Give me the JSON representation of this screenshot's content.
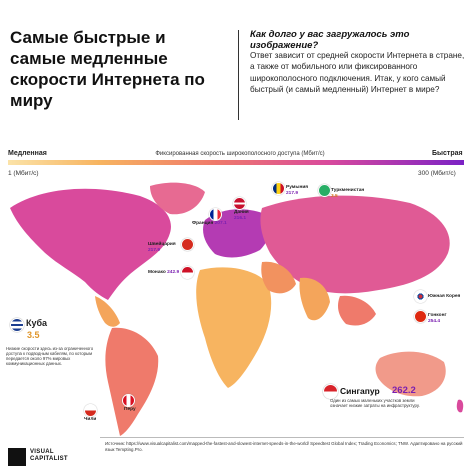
{
  "header": {
    "title": "Самые быстрые и самые медленные скорости Интернета по миру",
    "question": "Как долго у вас загружалось это изображение?",
    "answer": "Ответ зависит от средней скорости Интернета в стране, а также от мобильного или фиксированного широкополосного подключения. Итак, у кого самый быстрый (и самый медленный) Интернет в мире?"
  },
  "legend": {
    "slow": "Медленная",
    "fast": "Быстрая",
    "caption": "Фиксированная скорость широкополосного доступа (Мбит/с)",
    "min": "1 (Мбит/с)",
    "max": "300 (Мбит/с)",
    "colors": [
      "#fbe3a8",
      "#f7b460",
      "#ef7a6b",
      "#d94a9c",
      "#7b22c5"
    ]
  },
  "countries": [
    {
      "name": "Дания",
      "value": "216.1",
      "tier": "fast"
    },
    {
      "name": "Румыния",
      "value": "217.9",
      "tier": "fast"
    },
    {
      "name": "Франция",
      "value": "207.1",
      "tier": "fast"
    },
    {
      "name": "Швейцария",
      "value": "217.9",
      "tier": "fast"
    },
    {
      "name": "Монако",
      "value": "242.9",
      "tier": "fast"
    },
    {
      "name": "Туркменистан",
      "value": "3.5",
      "tier": "slow"
    },
    {
      "name": "Южная Корея",
      "value": "",
      "tier": "fast"
    },
    {
      "name": "Гонконг",
      "value": "254.4",
      "tier": "fast"
    },
    {
      "name": "Чили",
      "value": "",
      "tier": "fast"
    },
    {
      "name": "Перу",
      "value": "",
      "tier": "slow"
    }
  ],
  "callouts": {
    "cuba": {
      "name": "Куба",
      "value": "3.5",
      "note": "Низкие скорости здесь из-за ограниченного доступа к подводным кабелям, по которым передается около 97% мировых коммуникационных данных."
    },
    "singapore": {
      "name": "Сингапур",
      "value": "262.2",
      "note": "Один из самых маленьких участков земли означает низкие затраты на инфраструктуру."
    }
  },
  "footer": {
    "sources": "Источник: https://www.visualcapitalist.com/mapped-the-fastest-and-slowest-internet-speeds-in-the-world/ Speedtest Global Index; Trading Economics; TNW. Адаптировано на русский язык Tempting.Pro.",
    "brand_line1": "VISUAL",
    "brand_line2": "CAPITALIST"
  }
}
